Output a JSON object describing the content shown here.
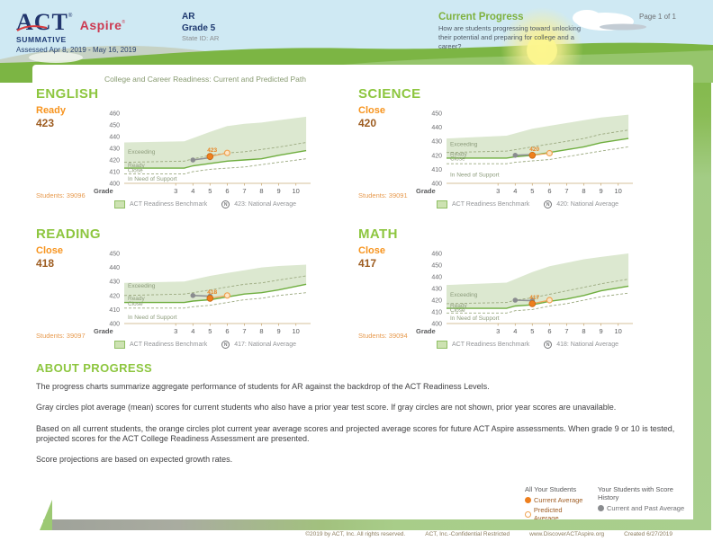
{
  "header": {
    "act": "ACT",
    "act_reg": "®",
    "aspire": "Aspire",
    "aspire_reg": "®",
    "summative": "SUMMATIVE",
    "assessed": "Assessed Apr 8, 2019 - May 16, 2019",
    "org": "AR",
    "grade": "Grade 5",
    "state_id": "State ID: AR",
    "progress_title": "Current Progress",
    "progress_sub": "How are students progressing toward unlocking their potential and preparing for college and a career?",
    "page": "Page 1 of 1"
  },
  "card": {
    "chart_title": "College and Career Readiness: Current and Predicted Path",
    "benchmark_label": "ACT Readiness Benchmark",
    "about_title": "ABOUT PROGRESS",
    "about_p1": "The progress charts summarize aggregate performance of students for AR against the backdrop of the ACT Readiness Levels.",
    "about_p2": "Gray circles plot average (mean) scores for current students who also have a prior year test score. If gray circles are not shown, prior year scores are unavailable.",
    "about_p3": "Based on all current students, the orange circles plot current year average scores and projected average scores for future ACT Aspire assessments. When grade 9 or 10 is tested, projected scores for the ACT College Readiness Assessment are presented.",
    "about_p4": "Score projections are based on expected growth rates.",
    "legend": {
      "all_title": "All Your Students",
      "current": "Current Average",
      "predicted": "Predicted Average",
      "history_title": "Your Students with Score History",
      "past": "Current and Past Average"
    }
  },
  "icons": {
    "national_average": "N"
  },
  "colors": {
    "green_heading": "#8dc63f",
    "orange_level": "#f7941e",
    "score_brown": "#9d5c20",
    "band_fill": "#dce8d0",
    "benchmark_line": "#6fae3f",
    "current_dot": "#ee7f1e",
    "predicted_dot": "#fce5c6",
    "past_dot": "#8a8c8f",
    "sky": "#cfe9f3",
    "hill_green": "#7cb544"
  },
  "footer": {
    "copyright": "©2019 by ACT, Inc. All rights reserved.",
    "confidential": "ACT, Inc.-Confidential Restricted",
    "url": "www.DiscoverACTAspire.org",
    "created": "Created 6/27/2019"
  },
  "chart_data": [
    {
      "type": "area",
      "subject": "ENGLISH",
      "level": "Ready",
      "score": "423",
      "students_label": "Students: 39096",
      "national_label": "423: National Average",
      "xlabel": "Grade",
      "grades": [
        3,
        4,
        5,
        6,
        7,
        8,
        9,
        10
      ],
      "ylim": [
        400,
        460
      ],
      "yticks": [
        460,
        450,
        440,
        430,
        420,
        410,
        400
      ],
      "zones": [
        {
          "label": "Exceeding",
          "y": 427
        },
        {
          "label": "Ready",
          "y": 415.5
        },
        {
          "label": "Close",
          "y": 411
        },
        {
          "label": "In Need of Support",
          "y": 404
        }
      ],
      "band_top": [
        [
          0,
          435
        ],
        [
          3.5,
          436
        ],
        [
          5,
          444
        ],
        [
          6,
          449
        ],
        [
          7,
          451
        ],
        [
          8,
          452
        ],
        [
          9,
          454
        ],
        [
          10.6,
          457
        ]
      ],
      "benchmark": [
        [
          0,
          413
        ],
        [
          3.5,
          413
        ],
        [
          4,
          415
        ],
        [
          5,
          417
        ],
        [
          6,
          419
        ],
        [
          7,
          420
        ],
        [
          8,
          421
        ],
        [
          9,
          424
        ],
        [
          10.6,
          428
        ]
      ],
      "dashed_upper": [
        [
          0,
          418
        ],
        [
          3.5,
          419
        ],
        [
          4,
          421
        ],
        [
          5,
          424
        ],
        [
          6,
          426
        ],
        [
          7,
          427
        ],
        [
          8,
          429
        ],
        [
          9,
          431
        ],
        [
          10.6,
          435
        ]
      ],
      "dashed_lower": [
        [
          0,
          408
        ],
        [
          3.5,
          408
        ],
        [
          4,
          410
        ],
        [
          5,
          412
        ],
        [
          6,
          413
        ],
        [
          7,
          414
        ],
        [
          8,
          416
        ],
        [
          9,
          418
        ],
        [
          10.6,
          421
        ]
      ],
      "gray_series": [
        [
          4,
          420
        ],
        [
          5,
          422
        ]
      ],
      "orange_series": [
        [
          5,
          423
        ],
        [
          6,
          426
        ]
      ],
      "point_label": "423"
    },
    {
      "type": "area",
      "subject": "SCIENCE",
      "level": "Close",
      "score": "420",
      "students_label": "Students: 39091",
      "national_label": "420: National Average",
      "xlabel": "Grade",
      "grades": [
        3,
        4,
        5,
        6,
        7,
        8,
        9,
        10
      ],
      "ylim": [
        400,
        450
      ],
      "yticks": [
        450,
        440,
        430,
        420,
        410,
        400
      ],
      "zones": [
        {
          "label": "Exceeding",
          "y": 428
        },
        {
          "label": "Ready",
          "y": 420.8
        },
        {
          "label": "Close",
          "y": 417.6
        },
        {
          "label": "In Need of Support",
          "y": 406
        }
      ],
      "band_top": [
        [
          0,
          432
        ],
        [
          3.5,
          434
        ],
        [
          5,
          439
        ],
        [
          6,
          441
        ],
        [
          7,
          443
        ],
        [
          8,
          445
        ],
        [
          9,
          447
        ],
        [
          10.6,
          449
        ]
      ],
      "benchmark": [
        [
          0,
          418
        ],
        [
          3.5,
          418
        ],
        [
          4,
          419
        ],
        [
          5,
          420
        ],
        [
          6,
          422
        ],
        [
          7,
          424
        ],
        [
          8,
          426
        ],
        [
          9,
          429
        ],
        [
          10.6,
          432
        ]
      ],
      "dashed_upper": [
        [
          0,
          422
        ],
        [
          3.5,
          423
        ],
        [
          4,
          424
        ],
        [
          5,
          426
        ],
        [
          6,
          428
        ],
        [
          7,
          430
        ],
        [
          8,
          432
        ],
        [
          9,
          435
        ],
        [
          10.6,
          438
        ]
      ],
      "dashed_lower": [
        [
          0,
          414
        ],
        [
          3.5,
          414
        ],
        [
          4,
          415
        ],
        [
          5,
          416
        ],
        [
          6,
          417
        ],
        [
          7,
          419
        ],
        [
          8,
          421
        ],
        [
          9,
          423
        ],
        [
          10.6,
          426
        ]
      ],
      "gray_series": [
        [
          4,
          420
        ],
        [
          5,
          420.5
        ]
      ],
      "orange_series": [
        [
          5,
          420
        ],
        [
          6,
          421.5
        ]
      ],
      "point_label": "420"
    },
    {
      "type": "area",
      "subject": "READING",
      "level": "Close",
      "score": "418",
      "students_label": "Students: 39097",
      "national_label": "417: National Average",
      "xlabel": "Grade",
      "grades": [
        3,
        4,
        5,
        6,
        7,
        8,
        9,
        10
      ],
      "ylim": [
        400,
        450
      ],
      "yticks": [
        450,
        440,
        430,
        420,
        410,
        400
      ],
      "zones": [
        {
          "label": "Exceeding",
          "y": 427
        },
        {
          "label": "Ready",
          "y": 417.8
        },
        {
          "label": "Close",
          "y": 414.2
        },
        {
          "label": "In Need of Support",
          "y": 404.5
        }
      ],
      "band_top": [
        [
          0,
          429
        ],
        [
          3.5,
          430
        ],
        [
          5,
          434
        ],
        [
          6,
          436
        ],
        [
          7,
          438
        ],
        [
          8,
          440
        ],
        [
          9,
          441
        ],
        [
          10.6,
          442
        ]
      ],
      "benchmark": [
        [
          0,
          415
        ],
        [
          3.5,
          415
        ],
        [
          4,
          416
        ],
        [
          5,
          417
        ],
        [
          6,
          419
        ],
        [
          7,
          421
        ],
        [
          8,
          422
        ],
        [
          9,
          424
        ],
        [
          10.6,
          428
        ]
      ],
      "dashed_upper": [
        [
          0,
          420
        ],
        [
          3.5,
          421
        ],
        [
          4,
          422
        ],
        [
          5,
          424
        ],
        [
          6,
          426
        ],
        [
          7,
          428
        ],
        [
          8,
          429
        ],
        [
          9,
          431
        ],
        [
          10.6,
          434
        ]
      ],
      "dashed_lower": [
        [
          0,
          411
        ],
        [
          3.5,
          411
        ],
        [
          4,
          412
        ],
        [
          5,
          413
        ],
        [
          6,
          415
        ],
        [
          7,
          417
        ],
        [
          8,
          418
        ],
        [
          9,
          420
        ],
        [
          10.6,
          422
        ]
      ],
      "gray_series": [
        [
          4,
          420
        ],
        [
          5,
          419.5
        ]
      ],
      "orange_series": [
        [
          5,
          418
        ],
        [
          6,
          420
        ]
      ],
      "point_label": "418"
    },
    {
      "type": "area",
      "subject": "MATH",
      "level": "Close",
      "score": "417",
      "students_label": "Students: 39094",
      "national_label": "418: National Average",
      "xlabel": "Grade",
      "grades": [
        3,
        4,
        5,
        6,
        7,
        8,
        9,
        10
      ],
      "ylim": [
        400,
        460
      ],
      "yticks": [
        460,
        450,
        440,
        430,
        420,
        410,
        400
      ],
      "zones": [
        {
          "label": "Exceeding",
          "y": 424.5
        },
        {
          "label": "Ready",
          "y": 415.3
        },
        {
          "label": "Close",
          "y": 411.5
        },
        {
          "label": "In Need of Support",
          "y": 404.5
        }
      ],
      "band_top": [
        [
          0,
          433
        ],
        [
          3.5,
          435
        ],
        [
          5,
          444
        ],
        [
          6,
          449
        ],
        [
          7,
          452
        ],
        [
          8,
          455
        ],
        [
          9,
          457
        ],
        [
          10.6,
          460
        ]
      ],
      "benchmark": [
        [
          0,
          413
        ],
        [
          3.5,
          413
        ],
        [
          4,
          415
        ],
        [
          5,
          416
        ],
        [
          6,
          419
        ],
        [
          7,
          421
        ],
        [
          8,
          424
        ],
        [
          9,
          428
        ],
        [
          10.6,
          432
        ]
      ],
      "dashed_upper": [
        [
          0,
          417
        ],
        [
          3.5,
          418
        ],
        [
          4,
          420
        ],
        [
          5,
          422
        ],
        [
          6,
          425
        ],
        [
          7,
          428
        ],
        [
          8,
          431
        ],
        [
          9,
          434
        ],
        [
          10.6,
          438
        ]
      ],
      "dashed_lower": [
        [
          0,
          409
        ],
        [
          3.5,
          409
        ],
        [
          4,
          411
        ],
        [
          5,
          412
        ],
        [
          6,
          415
        ],
        [
          7,
          417
        ],
        [
          8,
          420
        ],
        [
          9,
          423
        ],
        [
          10.6,
          426
        ]
      ],
      "gray_series": [
        [
          4,
          420
        ],
        [
          5,
          419.5
        ]
      ],
      "orange_series": [
        [
          5,
          417
        ],
        [
          6,
          420
        ]
      ],
      "point_label": "417"
    }
  ]
}
